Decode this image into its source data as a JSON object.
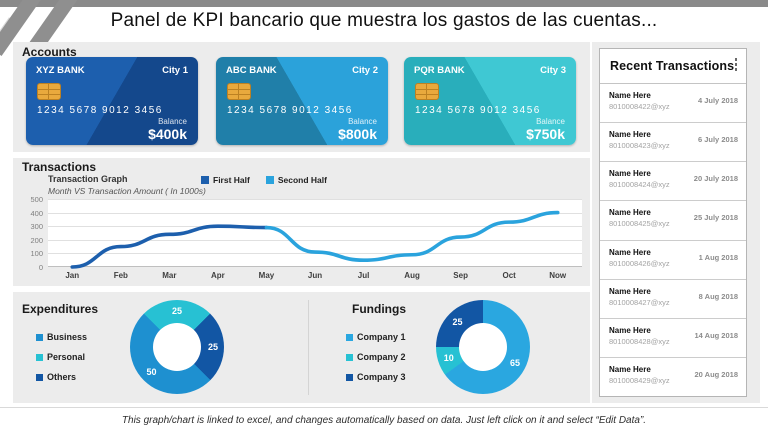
{
  "title": "Panel de KPI bancario que muestra los gastos de las cuentas...",
  "sections": {
    "accounts_header": "Accounts",
    "transactions_header": "Transactions",
    "recent_header": "Recent Transactions"
  },
  "accounts": {
    "cards": [
      {
        "bank": "XYZ BANK",
        "city": "City 1",
        "number": "1234 5678 9012 3456",
        "balance_label": "Balance",
        "balance": "$400k",
        "color_main": "#1d5fae",
        "color_shade": "#14488c",
        "shade_corner": "bottom-right"
      },
      {
        "bank": "ABC BANK",
        "city": "City 2",
        "number": "1234 5678 9012 3456",
        "balance_label": "Balance",
        "balance": "$800k",
        "color_main": "#2ba2da",
        "color_shade": "#207fa9",
        "shade_corner": "bottom-left"
      },
      {
        "bank": "PQR BANK",
        "city": "City 3",
        "number": "1234 5678 9012 3456",
        "balance_label": "Balance",
        "balance": "$750k",
        "color_main": "#3fc8d3",
        "color_shade": "#29aebb",
        "shade_corner": "bottom-left"
      }
    ]
  },
  "chart_data": [
    {
      "type": "line",
      "title": "Transaction Graph",
      "subtitle": "Month VS Transaction Amount ( In 1000s)",
      "categories": [
        "Jan",
        "Feb",
        "Mar",
        "Apr",
        "May",
        "Jun",
        "Jul",
        "Aug",
        "Sep",
        "Oct",
        "Now"
      ],
      "values": [
        0,
        150,
        240,
        300,
        290,
        110,
        50,
        90,
        220,
        330,
        400
      ],
      "series": [
        {
          "name": "First Half",
          "color": "#1d5fad",
          "from": 0,
          "to": 4
        },
        {
          "name": "Second Half",
          "color": "#2aa3dd",
          "from": 4,
          "to": 10
        }
      ],
      "ylim": [
        0,
        500
      ],
      "ytick": 100,
      "grid": true,
      "legend_position": "top"
    },
    {
      "type": "donut",
      "title": "Expenditures",
      "start_angle": 135,
      "slices": [
        {
          "label": "Business",
          "value": 50,
          "color": "#1e90d0"
        },
        {
          "label": "Personal",
          "value": 25,
          "color": "#27c1d3"
        },
        {
          "label": "Others",
          "value": 25,
          "color": "#1256a4"
        }
      ]
    },
    {
      "type": "donut",
      "title": "Fundings",
      "start_angle": 0,
      "slices": [
        {
          "label": "Company 1",
          "value": 65,
          "color": "#2aa7e0"
        },
        {
          "label": "Company 2",
          "value": 10,
          "color": "#27c1d3"
        },
        {
          "label": "Company 3",
          "value": 25,
          "color": "#1256a4"
        }
      ]
    }
  ],
  "recent": {
    "rows": [
      {
        "name": "Name Here",
        "id": "8010008422@xyz",
        "date": "4 July 2018"
      },
      {
        "name": "Name Here",
        "id": "8010008423@xyz",
        "date": "6 July 2018"
      },
      {
        "name": "Name Here",
        "id": "8010008424@xyz",
        "date": "20 July 2018"
      },
      {
        "name": "Name Here",
        "id": "8010008425@xyz",
        "date": "25 July 2018"
      },
      {
        "name": "Name Here",
        "id": "8010008426@xyz",
        "date": "1 Aug 2018"
      },
      {
        "name": "Name Here",
        "id": "8010008427@xyz",
        "date": "8 Aug 2018"
      },
      {
        "name": "Name Here",
        "id": "8010008428@xyz",
        "date": "14 Aug 2018"
      },
      {
        "name": "Name Here",
        "id": "8010008429@xyz",
        "date": "20 Aug 2018"
      }
    ]
  },
  "footer": "This graph/chart is linked to excel, and changes automatically based on data. Just left click on it and select “Edit Data”."
}
